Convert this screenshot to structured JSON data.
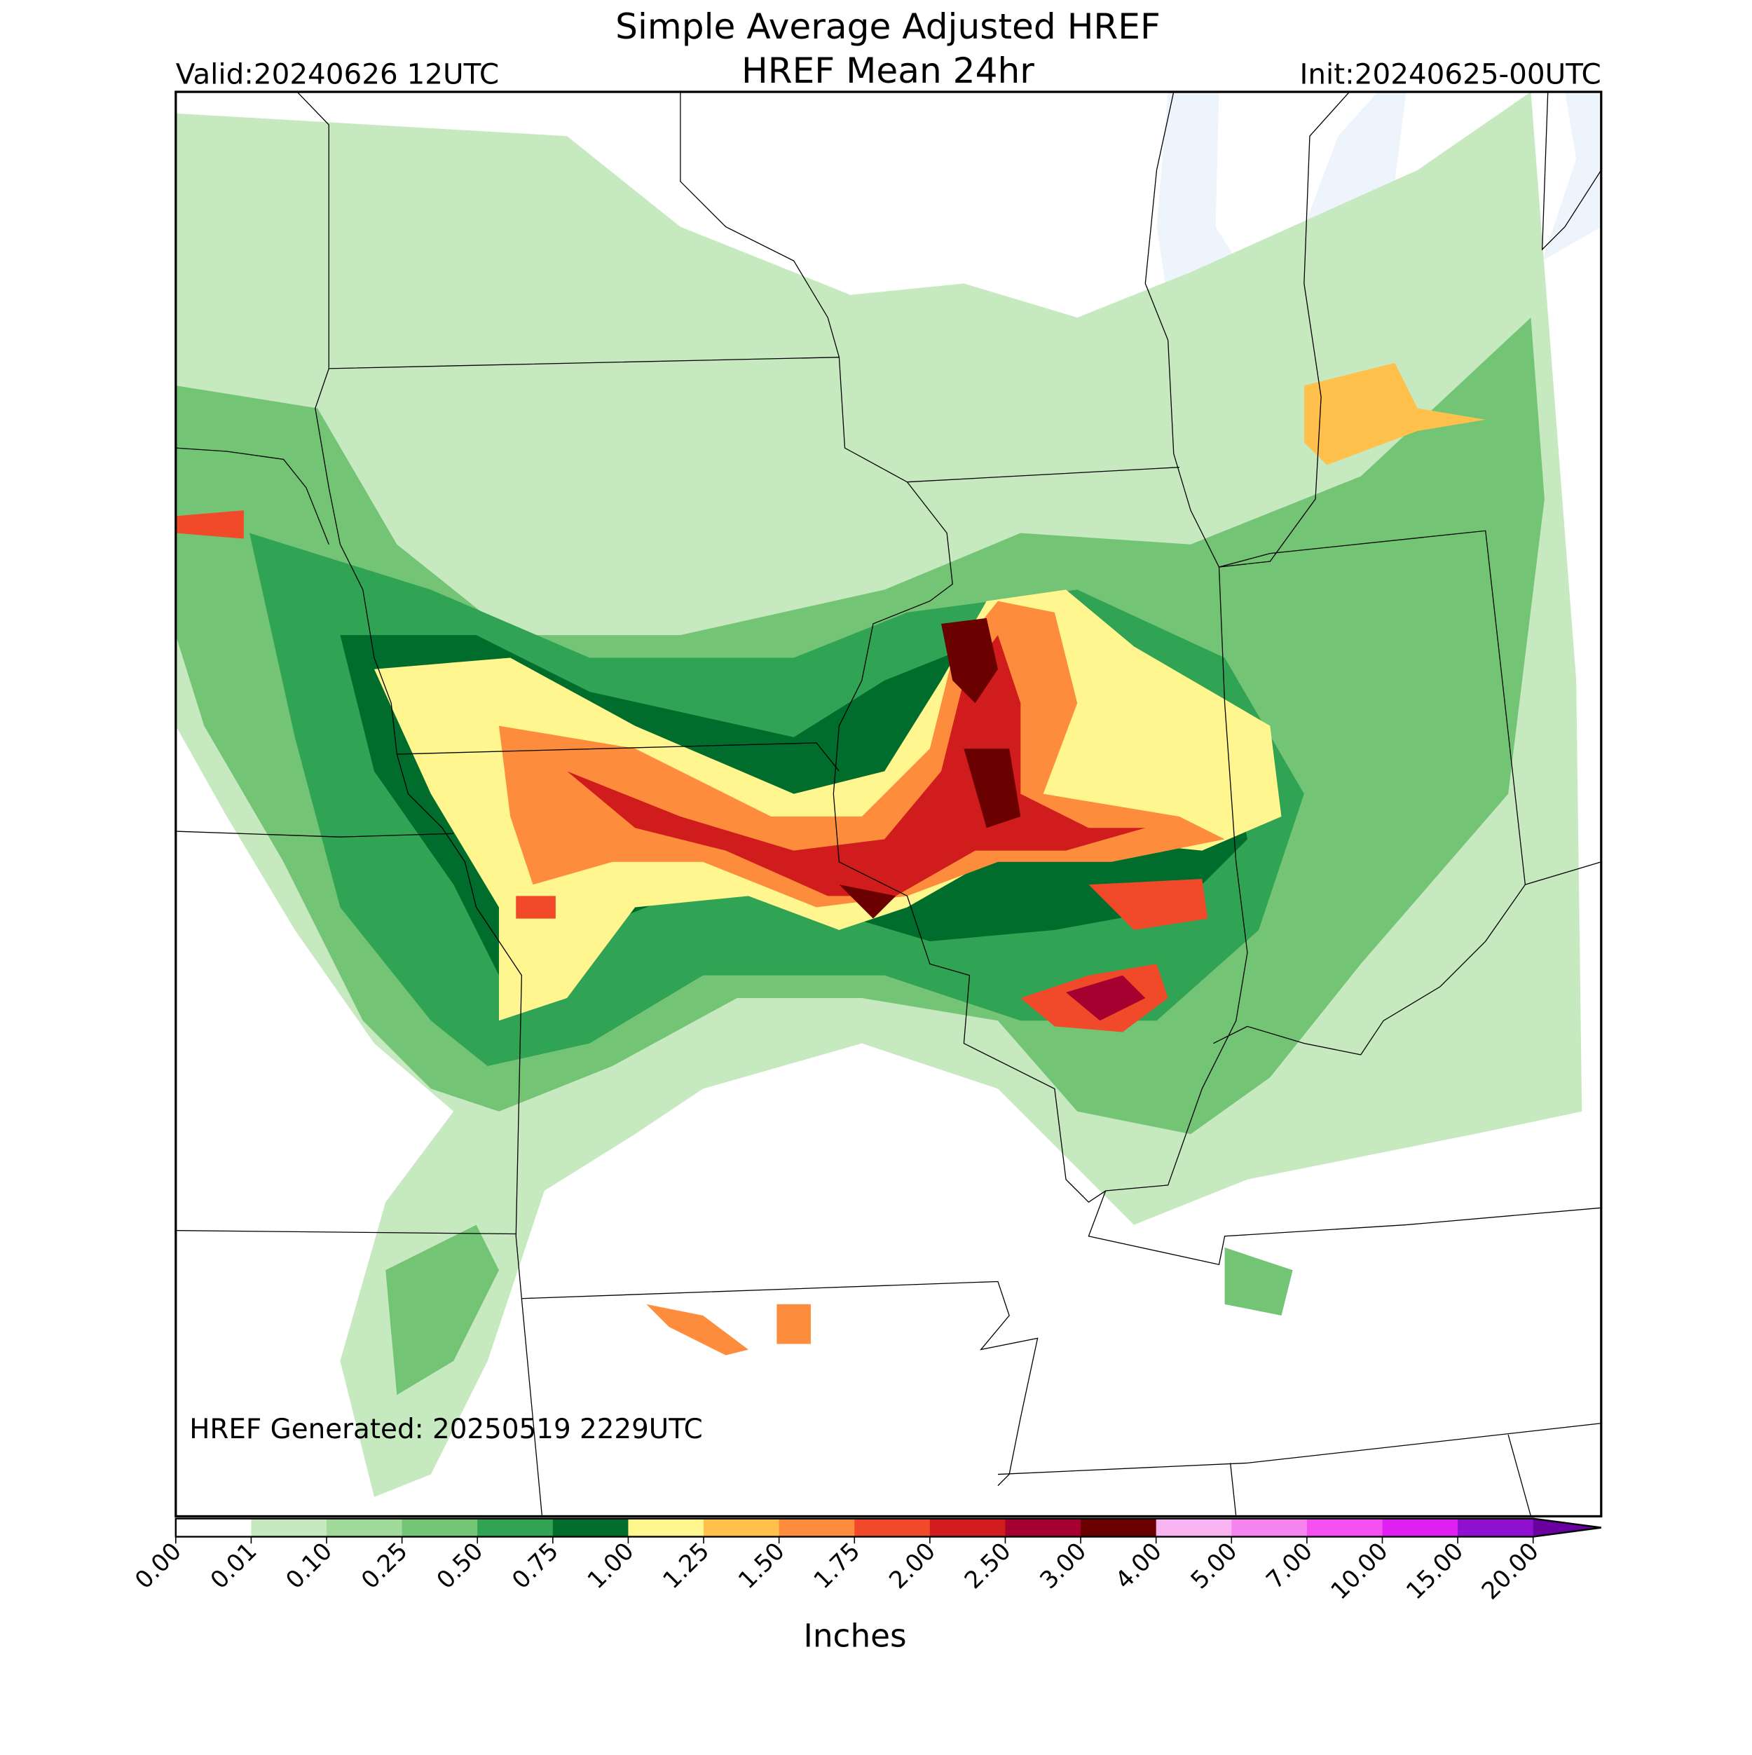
{
  "header": {
    "title": "Simple Average Adjusted HREF",
    "subtitle": "HREF Mean 24hr",
    "valid": "Valid:20240626 12UTC",
    "init": "Init:20240625-00UTC"
  },
  "annotation": "HREF Generated: 20250519 2229UTC",
  "colorbar": {
    "label": "Inches",
    "ticks": [
      {
        "value": 0,
        "label": "0.00"
      },
      {
        "value": 0.01,
        "label": "0.01"
      },
      {
        "value": 0.1,
        "label": "0.10"
      },
      {
        "value": 0.25,
        "label": "0.25"
      },
      {
        "value": 0.5,
        "label": "0.50"
      },
      {
        "value": 0.75,
        "label": "0.75"
      },
      {
        "value": 1,
        "label": "1.00"
      },
      {
        "value": 1.25,
        "label": "1.25"
      },
      {
        "value": 1.5,
        "label": "1.50"
      },
      {
        "value": 1.75,
        "label": "1.75"
      },
      {
        "value": 2,
        "label": "2.00"
      },
      {
        "value": 2.5,
        "label": "2.50"
      },
      {
        "value": 3,
        "label": "3.00"
      },
      {
        "value": 4,
        "label": "4.00"
      },
      {
        "value": 5,
        "label": "5.00"
      },
      {
        "value": 7,
        "label": "7.00"
      },
      {
        "value": 10,
        "label": "10.00"
      },
      {
        "value": 15,
        "label": "15.00"
      },
      {
        "value": 20,
        "label": "20.00"
      }
    ],
    "colors": [
      "#ffffff",
      "#c7e9c0",
      "#a1d99b",
      "#74c476",
      "#31a354",
      "#006d2c",
      "#fff68f",
      "#ffc04c",
      "#fd8d3c",
      "#f04a2a",
      "#d01c1c",
      "#a50030",
      "#6b0000",
      "#f8b4f0",
      "#f685f0",
      "#f450f0",
      "#e020f0",
      "#9010d0"
    ],
    "extend_color": "#6a00a0"
  }
}
